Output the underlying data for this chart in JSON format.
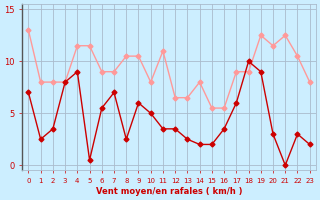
{
  "x": [
    0,
    1,
    2,
    3,
    4,
    5,
    6,
    7,
    8,
    9,
    10,
    11,
    12,
    13,
    14,
    15,
    16,
    17,
    18,
    19,
    20,
    21,
    22,
    23
  ],
  "vent_moyen": [
    7,
    2.5,
    3.5,
    8,
    9,
    0.5,
    5.5,
    7,
    2.5,
    6,
    5,
    3.5,
    3.5,
    2.5,
    2,
    2,
    3.5,
    6,
    10,
    9,
    3,
    0,
    3,
    2
  ],
  "rafales": [
    13,
    8,
    8,
    8,
    11.5,
    11.5,
    9,
    9,
    10.5,
    10.5,
    8,
    11,
    6.5,
    6.5,
    8,
    5.5,
    5.5,
    9,
    9,
    12.5,
    11.5,
    12.5,
    10.5,
    8
  ],
  "line_moyen_color": "#cc0000",
  "line_rafales_color": "#ff9999",
  "bg_color": "#cceeff",
  "grid_color": "#aabbcc",
  "xlabel": "Vent moyen/en rafales ( km/h )",
  "xlabel_color": "#cc0000",
  "ylabel_color": "#cc0000",
  "yticks": [
    0,
    5,
    10,
    15
  ],
  "ylim": [
    -0.5,
    15.5
  ],
  "xlim": [
    -0.5,
    23.5
  ],
  "tick_label_color": "#cc0000"
}
